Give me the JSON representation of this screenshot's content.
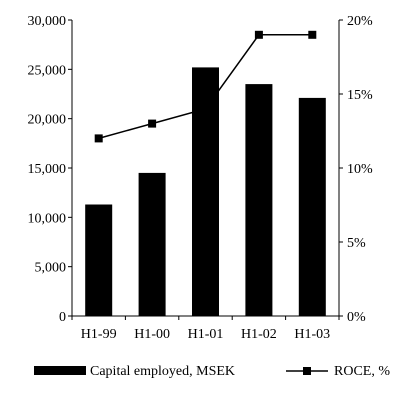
{
  "chart_data": {
    "type": "bar",
    "categories": [
      "H1-99",
      "H1-00",
      "H1-01",
      "H1-02",
      "H1-03"
    ],
    "series": [
      {
        "name": "Capital employed, MSEK",
        "type": "bar",
        "axis": "left",
        "values": [
          11300,
          14500,
          25200,
          23500,
          22100
        ]
      },
      {
        "name": "ROCE, %",
        "type": "line",
        "axis": "right",
        "values": [
          12,
          13,
          14,
          19,
          19
        ]
      }
    ],
    "y_left": {
      "min": 0,
      "max": 30000,
      "ticks": [
        0,
        5000,
        10000,
        15000,
        20000,
        25000,
        30000
      ],
      "tick_labels": [
        "0",
        "5,000",
        "10,000",
        "15,000",
        "20,000",
        "25,000",
        "30,000"
      ]
    },
    "y_right": {
      "min": 0,
      "max": 20,
      "ticks": [
        0,
        5,
        10,
        15,
        20
      ],
      "tick_labels": [
        "0%",
        "5%",
        "10%",
        "15%",
        "20%"
      ]
    },
    "legend": {
      "placement": "bottom"
    },
    "grid": false,
    "colors": {
      "bar": "#000000",
      "line": "#000000",
      "marker": "#000000",
      "axis": "#000000"
    }
  }
}
